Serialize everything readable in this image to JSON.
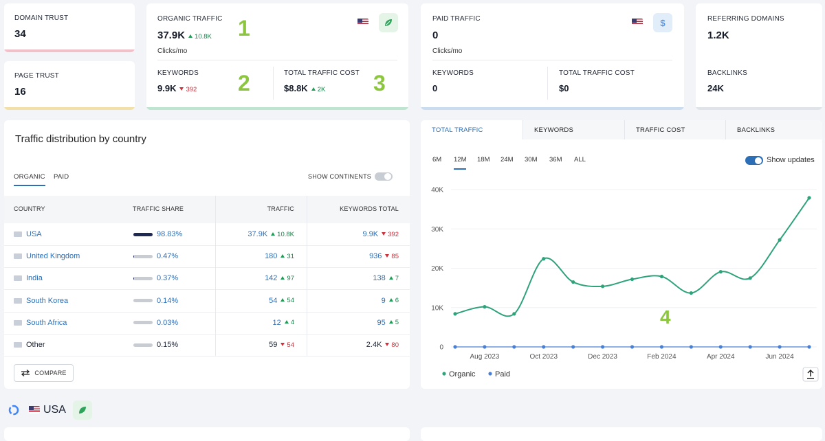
{
  "cards": {
    "domain_trust": {
      "label": "DOMAIN TRUST",
      "value": "34"
    },
    "page_trust": {
      "label": "PAGE TRUST",
      "value": "16"
    },
    "organic": {
      "label": "ORGANIC TRAFFIC",
      "value": "37.9K",
      "delta": {
        "text": "10.8K",
        "dir": "up"
      },
      "unit": "Clicks/mo",
      "badge": "1",
      "keywords": {
        "label": "KEYWORDS",
        "value": "9.9K",
        "delta": {
          "text": "392",
          "dir": "down"
        },
        "badge": "2"
      },
      "cost": {
        "label": "TOTAL TRAFFIC COST",
        "value": "$8.8K",
        "delta": {
          "text": "2K",
          "dir": "up"
        },
        "badge": "3"
      }
    },
    "paid": {
      "label": "PAID TRAFFIC",
      "value": "0",
      "unit": "Clicks/mo",
      "icon": "$",
      "keywords": {
        "label": "KEYWORDS",
        "value": "0"
      },
      "cost": {
        "label": "TOTAL TRAFFIC COST",
        "value": "$0"
      }
    },
    "links": {
      "label": "REFERRING DOMAINS",
      "value": "1.2K",
      "backlinks": {
        "label": "BACKLINKS",
        "value": "24K"
      }
    }
  },
  "distribution": {
    "title": "Traffic distribution by country",
    "tabs": [
      "ORGANIC",
      "PAID"
    ],
    "toggle": "SHOW CONTINENTS",
    "columns": [
      "COUNTRY",
      "TRAFFIC SHARE",
      "TRAFFIC",
      "KEYWORDS TOTAL"
    ],
    "rows": [
      {
        "country": "USA",
        "link": true,
        "share": "98.83%",
        "traffic": "37.9K",
        "traffic_delta": {
          "text": "10.8K",
          "dir": "up"
        },
        "keywords": "9.9K",
        "keywords_delta": {
          "text": "392",
          "dir": "down"
        }
      },
      {
        "country": "United Kingdom",
        "link": true,
        "share": "0.47%",
        "traffic": "180",
        "traffic_delta": {
          "text": "31",
          "dir": "up"
        },
        "keywords": "936",
        "keywords_delta": {
          "text": "85",
          "dir": "down"
        }
      },
      {
        "country": "India",
        "link": true,
        "share": "0.37%",
        "traffic": "142",
        "traffic_delta": {
          "text": "97",
          "dir": "up"
        },
        "keywords": "138",
        "keywords_delta": {
          "text": "7",
          "dir": "up"
        }
      },
      {
        "country": "South Korea",
        "link": true,
        "share": "0.14%",
        "traffic": "54",
        "traffic_delta": {
          "text": "54",
          "dir": "up"
        },
        "keywords": "9",
        "keywords_delta": {
          "text": "6",
          "dir": "up"
        }
      },
      {
        "country": "South Africa",
        "link": true,
        "share": "0.03%",
        "traffic": "12",
        "traffic_delta": {
          "text": "4",
          "dir": "up"
        },
        "keywords": "95",
        "keywords_delta": {
          "text": "5",
          "dir": "up"
        }
      },
      {
        "country": "Other",
        "link": false,
        "share": "0.15%",
        "traffic": "59",
        "traffic_delta": {
          "text": "54",
          "dir": "down"
        },
        "keywords": "2.4K",
        "keywords_delta": {
          "text": "80",
          "dir": "down"
        }
      }
    ],
    "compare": "COMPARE"
  },
  "chart_panel": {
    "tabs": [
      "TOTAL TRAFFIC",
      "KEYWORDS",
      "TRAFFIC COST",
      "BACKLINKS"
    ],
    "ranges": [
      "6M",
      "12M",
      "18M",
      "24M",
      "30M",
      "36M",
      "ALL"
    ],
    "show_updates": "Show updates",
    "badge": "4"
  },
  "chart_data": {
    "type": "line",
    "categories": [
      null,
      "Aug 2023",
      null,
      "Oct 2023",
      null,
      "Dec 2023",
      null,
      "Feb 2024",
      null,
      "Apr 2024",
      null,
      "Jun 2024",
      null
    ],
    "series": [
      {
        "name": "Organic",
        "color": "#2ea37a",
        "values": [
          8400,
          10200,
          8400,
          22400,
          16500,
          15400,
          17200,
          17900,
          13700,
          19100,
          17500,
          27200,
          37900
        ]
      },
      {
        "name": "Paid",
        "color": "#4a80d4",
        "values": [
          0,
          0,
          0,
          0,
          0,
          0,
          0,
          0,
          0,
          0,
          0,
          0,
          0
        ]
      }
    ],
    "ylim": [
      0,
      40000
    ],
    "yticks": [
      0,
      {
        "value": 10000,
        "label": "10K"
      },
      {
        "value": 20000,
        "label": "20K"
      },
      {
        "value": 30000,
        "label": "30K"
      },
      {
        "value": 40000,
        "label": "40K"
      }
    ],
    "grid": true,
    "legend": "bottom-left"
  },
  "footer": {
    "country": "USA"
  }
}
